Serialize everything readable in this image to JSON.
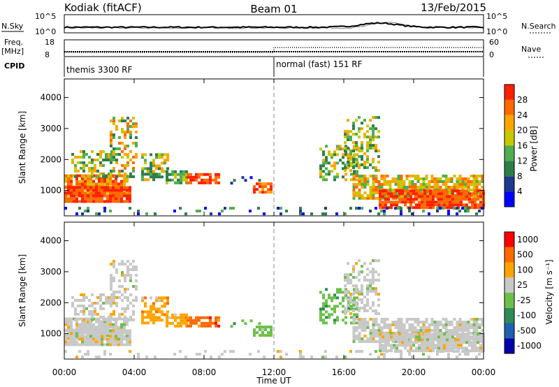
{
  "header": {
    "station": "Kodiak (fitACF)",
    "beam": "Beam 01",
    "date": "13/Feb/2015"
  },
  "strips": {
    "nsky_label": "N.Sky",
    "nsky_ticks": [
      "10^5",
      "10^0"
    ],
    "nsearch_label": "N.Search",
    "nsearch_ticks": [
      "10^5",
      "10^0"
    ],
    "freq_label": "Freq.",
    "freq_unit": "[MHz]",
    "freq_ticks": [
      "18",
      "8"
    ],
    "nave_label": "Nave",
    "nave_ticks": [
      "60",
      "0"
    ],
    "cpid_label": "CPID",
    "cpid_segments": [
      "themis 3300 RF",
      "normal (fast) 151 RF"
    ]
  },
  "colors": {
    "power": [
      "#0000ff",
      "#1b3a8c",
      "#2d7d4a",
      "#4caf50",
      "#c8c800",
      "#ffa500",
      "#ff6a00",
      "#ff2000"
    ],
    "velocity": [
      "#0000aa",
      "#1f5fb0",
      "#2e8b57",
      "#6cc04a",
      "#c8c8c8",
      "#ffa500",
      "#ff6a00",
      "#ff0000"
    ]
  },
  "chart_data": [
    {
      "type": "heatmap",
      "name": "power",
      "ylabel": "Slant Range [km]",
      "ylim": [
        180,
        4600
      ],
      "yticks": [
        1000,
        2000,
        3000,
        4000
      ],
      "xlim": [
        0,
        24
      ],
      "xticks": [
        "00:00",
        "04:00",
        "08:00",
        "12:00",
        "16:00",
        "20:00",
        "00:00"
      ],
      "colorbar_label": "Power [dB]",
      "colorbar_ticks": [
        "4",
        "8",
        "12",
        "16",
        "20",
        "24",
        "28"
      ]
    },
    {
      "type": "heatmap",
      "name": "velocity",
      "ylabel": "Slant Range [km]",
      "ylim": [
        180,
        4600
      ],
      "yticks": [
        1000,
        2000,
        3000,
        4000
      ],
      "xlim": [
        0,
        24
      ],
      "xticks": [
        "00:00",
        "04:00",
        "08:00",
        "12:00",
        "16:00",
        "20:00",
        "00:00"
      ],
      "xlabel": "Time UT",
      "colorbar_label": "Velocity [m s⁻¹]",
      "colorbar_ticks": [
        "1000",
        "500",
        "100",
        "25",
        "-25",
        "-100",
        "-500",
        "-1000"
      ]
    }
  ]
}
